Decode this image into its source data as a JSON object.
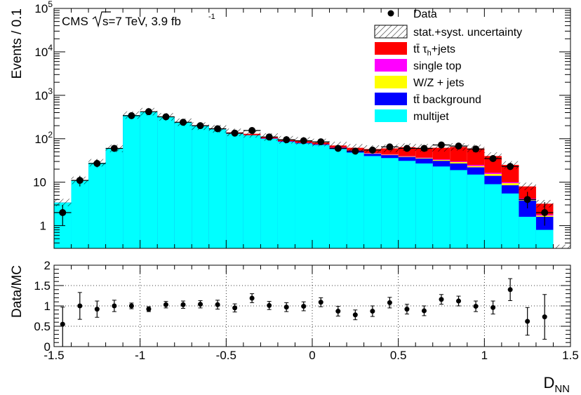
{
  "chart_data": [
    {
      "type": "histogram-stacked",
      "ylabel": "Events / 0.1",
      "yscale": "log",
      "ylim": [
        0.3,
        100000
      ],
      "xlim": [
        -1.5,
        1.5
      ],
      "annotation": {
        "experiment": "CMS",
        "energy": "s=7 TeV, 3.9 fb",
        "lumi_exponent": "-1"
      },
      "ytick_labels": [
        {
          "value": 1,
          "base": "1",
          "exp": ""
        },
        {
          "value": 10,
          "base": "10",
          "exp": ""
        },
        {
          "value": 100,
          "base": "10",
          "exp": "2"
        },
        {
          "value": 1000,
          "base": "10",
          "exp": "3"
        },
        {
          "value": 10000,
          "base": "10",
          "exp": "4"
        },
        {
          "value": 100000,
          "base": "10",
          "exp": "5"
        }
      ],
      "bin_edges": [
        -1.5,
        -1.4,
        -1.3,
        -1.2,
        -1.1,
        -1.0,
        -0.9,
        -0.8,
        -0.7,
        -0.6,
        -0.5,
        -0.4,
        -0.3,
        -0.2,
        -0.1,
        0.0,
        0.1,
        0.2,
        0.3,
        0.4,
        0.5,
        0.6,
        0.7,
        0.8,
        0.9,
        1.0,
        1.1,
        1.2,
        1.3,
        1.4,
        1.5
      ],
      "legend": [
        {
          "key": "data",
          "label": "Data",
          "color": "#000000",
          "style": "marker"
        },
        {
          "key": "unc",
          "label": "stat.+syst. uncertainty",
          "color": "#000000",
          "style": "hatch"
        },
        {
          "key": "ttau",
          "label": "tt̄ τ",
          "sub": "h",
          "suffix": "+jets",
          "color": "#ff0000",
          "style": "fill"
        },
        {
          "key": "singletop",
          "label": "single top",
          "color": "#ff00ff",
          "style": "fill"
        },
        {
          "key": "wz",
          "label": "W/Z + jets",
          "color": "#ffff00",
          "style": "fill"
        },
        {
          "key": "ttbkg",
          "label": "tt̄ background",
          "color": "#0000ff",
          "style": "fill"
        },
        {
          "key": "multijet",
          "label": "multijet",
          "color": "#00ffff",
          "style": "fill"
        }
      ],
      "stack_cumulative": {
        "multijet": [
          3.4,
          11,
          28,
          60,
          350,
          420,
          320,
          240,
          195,
          165,
          130,
          120,
          100,
          85,
          78,
          72,
          58,
          48,
          40,
          36,
          31,
          27,
          23,
          19,
          15,
          9,
          5.5,
          1.6,
          0.8,
          0.3
        ],
        "ttbkg": [
          3.4,
          11,
          28,
          60,
          350,
          420,
          320,
          240,
          195,
          165,
          130,
          120,
          101,
          87,
          80,
          74,
          62,
          53,
          45,
          42,
          38,
          35,
          31,
          27,
          22,
          14,
          8.5,
          3.8,
          1.6,
          0.3
        ],
        "wz": [
          3.4,
          11,
          28,
          60,
          350,
          420,
          320,
          240,
          195,
          165,
          130,
          120,
          101,
          87,
          80,
          74,
          62,
          53,
          46,
          43,
          39,
          36,
          32.5,
          29,
          23.5,
          15.5,
          9.5,
          4,
          1.7,
          0.3
        ],
        "singletop": [
          3.4,
          11,
          28,
          60,
          350,
          420,
          320,
          240,
          195,
          165,
          130,
          121,
          102,
          88,
          81,
          75,
          63,
          54,
          47,
          44,
          40,
          37,
          33.5,
          30,
          25,
          16.5,
          10,
          4.2,
          1.8,
          0.3
        ],
        "ttau": [
          3.4,
          11,
          28,
          60,
          350,
          420,
          320,
          240,
          195,
          170,
          140,
          130,
          110,
          95,
          90,
          82,
          70,
          62,
          58,
          60,
          64,
          62,
          62,
          65,
          60,
          40,
          25,
          8,
          3.2,
          0.3
        ]
      },
      "data_points": {
        "x": [
          -1.45,
          -1.35,
          -1.25,
          -1.15,
          -1.05,
          -0.95,
          -0.85,
          -0.75,
          -0.65,
          -0.55,
          -0.45,
          -0.35,
          -0.25,
          -0.15,
          -0.05,
          0.05,
          0.15,
          0.25,
          0.35,
          0.45,
          0.55,
          0.65,
          0.75,
          0.85,
          0.95,
          1.05,
          1.15,
          1.25,
          1.35
        ],
        "y": [
          2,
          11,
          27,
          60,
          340,
          420,
          320,
          240,
          200,
          170,
          135,
          155,
          110,
          95,
          90,
          85,
          60,
          52,
          55,
          65,
          60,
          60,
          72,
          68,
          58,
          35,
          23,
          4,
          2
        ],
        "ylow": [
          1,
          8,
          22,
          52,
          320,
          400,
          302,
          225,
          187,
          158,
          124,
          143,
          100,
          86,
          81,
          76,
          53,
          45,
          48,
          57,
          53,
          53,
          64,
          60,
          51,
          30,
          19,
          2.5,
          1
        ],
        "yhigh": [
          3,
          14,
          33,
          68,
          360,
          440,
          338,
          255,
          213,
          183,
          146,
          168,
          121,
          105,
          100,
          95,
          68,
          60,
          63,
          73,
          68,
          68,
          80,
          76,
          66,
          41,
          28,
          6,
          3.5
        ]
      }
    },
    {
      "type": "scatter-errorbar",
      "ylabel": "Data/MC",
      "xlabel": "D",
      "xlabel_sub": "NN",
      "xlim": [
        -1.5,
        1.5
      ],
      "ylim": [
        0,
        2
      ],
      "grid": true,
      "xtick_labels": [
        "-1.5",
        "-1",
        "-0.5",
        "0",
        "0.5",
        "1",
        "1.5"
      ],
      "ytick_labels": [
        "0",
        "0.5",
        "1",
        "1.5",
        "2"
      ],
      "x": [
        -1.45,
        -1.35,
        -1.25,
        -1.15,
        -1.05,
        -0.95,
        -0.85,
        -0.75,
        -0.65,
        -0.55,
        -0.45,
        -0.35,
        -0.25,
        -0.15,
        -0.05,
        0.05,
        0.15,
        0.25,
        0.35,
        0.45,
        0.55,
        0.65,
        0.75,
        0.85,
        0.95,
        1.05,
        1.15,
        1.25,
        1.35
      ],
      "y": [
        0.55,
        1.0,
        0.92,
        1.0,
        1.0,
        0.92,
        1.03,
        1.03,
        1.04,
        1.03,
        0.95,
        1.19,
        1.01,
        0.97,
        0.99,
        1.09,
        0.87,
        0.78,
        0.87,
        1.08,
        0.92,
        0.88,
        1.16,
        1.12,
        0.99,
        0.96,
        1.4,
        0.62,
        0.73
      ],
      "ylow": [
        0.0,
        0.67,
        0.72,
        0.86,
        0.93,
        0.86,
        0.95,
        0.94,
        0.95,
        0.92,
        0.85,
        1.08,
        0.91,
        0.86,
        0.88,
        0.98,
        0.75,
        0.66,
        0.74,
        0.95,
        0.8,
        0.76,
        1.04,
        1.0,
        0.86,
        0.8,
        1.13,
        0.28,
        0.18
      ],
      "yhigh": [
        0.97,
        1.33,
        1.12,
        1.14,
        1.07,
        0.98,
        1.11,
        1.12,
        1.13,
        1.14,
        1.05,
        1.3,
        1.11,
        1.08,
        1.1,
        1.2,
        0.99,
        0.9,
        1.0,
        1.21,
        1.04,
        1.0,
        1.28,
        1.24,
        1.12,
        1.12,
        1.67,
        0.96,
        1.28
      ]
    }
  ]
}
